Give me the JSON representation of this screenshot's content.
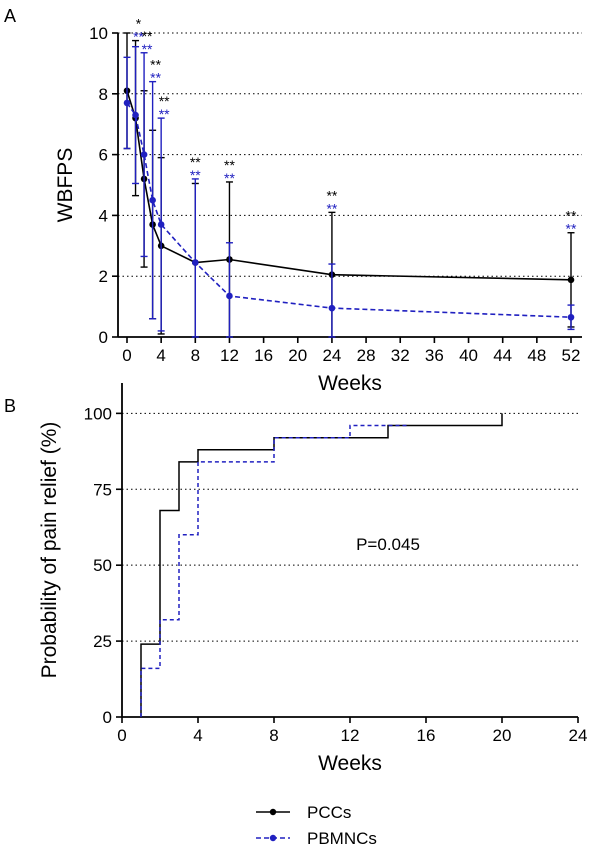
{
  "colors": {
    "pccs": "#000000",
    "pbmncs": "#2020c0",
    "axis": "#000000",
    "grid": "#000000"
  },
  "legend": {
    "items": [
      {
        "key": "pccs",
        "label": "PCCs",
        "style": "solid"
      },
      {
        "key": "pbmncs",
        "label": "PBMNCs",
        "style": "dashed"
      }
    ],
    "placement": "bottom-center"
  },
  "chart_data": [
    {
      "panel_label": "A",
      "type": "line",
      "xlabel": "Weeks",
      "ylabel": "WBFPS",
      "xlim": [
        0,
        52
      ],
      "ylim": [
        0,
        10
      ],
      "x_ticks": [
        0,
        4,
        8,
        12,
        16,
        20,
        24,
        28,
        32,
        36,
        40,
        44,
        48,
        52
      ],
      "y_ticks": [
        0,
        2,
        4,
        6,
        8,
        10
      ],
      "grid": "horizontal-dotted",
      "series": [
        {
          "name": "PCCs",
          "key": "pccs",
          "style": "solid",
          "x": [
            0,
            1,
            2,
            3,
            4,
            8,
            12,
            24,
            52
          ],
          "y": [
            8.1,
            7.2,
            5.2,
            3.7,
            3.0,
            2.45,
            2.55,
            2.05,
            1.88
          ],
          "err": [
            1.9,
            2.55,
            2.9,
            3.1,
            2.9,
            2.6,
            2.55,
            2.05,
            1.55
          ]
        },
        {
          "name": "PBMNCs",
          "key": "pbmncs",
          "style": "dashed",
          "x": [
            0,
            1,
            2,
            3,
            4,
            8,
            12,
            24,
            52
          ],
          "y": [
            7.7,
            7.3,
            6.0,
            4.5,
            3.7,
            2.45,
            1.35,
            0.95,
            0.65
          ],
          "err": [
            1.5,
            2.25,
            3.35,
            3.9,
            3.5,
            2.75,
            1.75,
            1.45,
            0.4
          ]
        }
      ],
      "annotations": [
        {
          "x": 1,
          "pccs": "*",
          "pbmncs": "**"
        },
        {
          "x": 2,
          "pccs": "**",
          "pbmncs": "**"
        },
        {
          "x": 3,
          "pccs": "**",
          "pbmncs": "**"
        },
        {
          "x": 4,
          "pccs": "**",
          "pbmncs": "**"
        },
        {
          "x": 8,
          "pccs": "**",
          "pbmncs": "**"
        },
        {
          "x": 12,
          "pccs": "**",
          "pbmncs": "**"
        },
        {
          "x": 24,
          "pccs": "**",
          "pbmncs": "**"
        },
        {
          "x": 52,
          "pccs": "**",
          "pbmncs": "**"
        }
      ]
    },
    {
      "panel_label": "B",
      "type": "line",
      "step": true,
      "xlabel": "Weeks",
      "ylabel": "Probability of pain relief (%)",
      "xlim": [
        0,
        24
      ],
      "ylim": [
        0,
        110
      ],
      "x_ticks": [
        0,
        4,
        8,
        12,
        16,
        20,
        24
      ],
      "y_ticks": [
        0,
        25,
        50,
        75,
        100
      ],
      "grid": "horizontal-dotted",
      "annotation_text": "P=0.045",
      "series": [
        {
          "name": "PCCs",
          "key": "pccs",
          "style": "solid",
          "x": [
            1,
            2,
            3,
            4,
            8,
            14,
            20
          ],
          "y": [
            24,
            68,
            84,
            88,
            92,
            96,
            100
          ],
          "start": 0,
          "tail_end": 20
        },
        {
          "name": "PBMNCs",
          "key": "pbmncs",
          "style": "dashed",
          "x": [
            1,
            2,
            3,
            4,
            8,
            12
          ],
          "y": [
            16,
            32,
            60,
            84,
            92,
            96
          ],
          "start": 0,
          "tail_end": 15
        }
      ]
    }
  ]
}
